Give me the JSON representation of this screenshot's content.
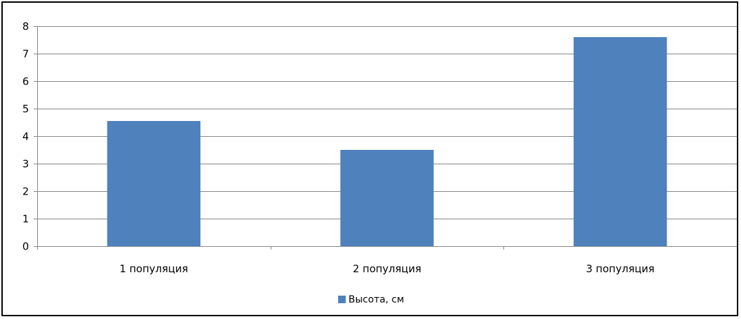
{
  "chart_data": {
    "type": "bar",
    "categories": [
      "1 популяция",
      "2 популяция",
      "3 популяция"
    ],
    "series": [
      {
        "name": "Высота, см",
        "values": [
          4.55,
          3.5,
          7.6
        ]
      }
    ],
    "ylim": [
      0,
      8
    ],
    "yticks": [
      "0",
      "1",
      "2",
      "3",
      "4",
      "5",
      "6",
      "7",
      "8"
    ],
    "grid": true,
    "legend": "bottom",
    "colors": {
      "bar": "#4F81BD",
      "grid": "#868686",
      "axis": "#868686"
    }
  }
}
